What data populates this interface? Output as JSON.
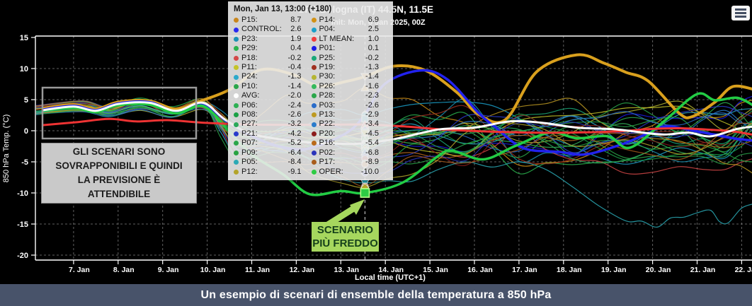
{
  "header": {
    "title": "GFS Bologna (IT) 44.5N, 11.5E",
    "subtitle": "Init: Mon, 6 Jan 2025, 00Z"
  },
  "tooltip": {
    "timestamp": "Mon, Jan 13, 13:00 (+180)"
  },
  "annotations": {
    "overlap_note": {
      "lines": [
        "GLI SCENARI SONO",
        "SOVRAPPONIBILI E QUINDI",
        "LA PREVISIONE È",
        "ATTENDIBILE"
      ]
    },
    "coldest": {
      "lines": [
        "SCENARIO",
        "PIÙ FREDDO"
      ]
    }
  },
  "caption": "Un esempio di scenari di ensemble della temperatura a 850 hPa",
  "axes": {
    "y_label": "850 hPa Temp. (°C)",
    "x_label": "Local time (UTC+1)",
    "y_ticks": [
      15,
      10,
      5,
      0,
      -5,
      -10,
      -15,
      -20
    ],
    "x_ticks": [
      "7. Jan",
      "8. Jan",
      "9. Jan",
      "10. Jan",
      "11. Jan",
      "12. Jan",
      "13. Jan",
      "14. Jan",
      "15. Jan",
      "16. Jan",
      "17. Jan",
      "18. Jan",
      "19. Jan",
      "20. Jan",
      "21. Jan",
      "22. Jan"
    ]
  },
  "chart_data": {
    "type": "line",
    "title": "GFS Bologna (IT) 44.5N, 11.5E",
    "init": "Mon, 6 Jan 2025, 00Z",
    "xlabel": "Local time (UTC+1)",
    "ylabel": "850 hPa Temp. (°C)",
    "ylim": [
      -20,
      15
    ],
    "x_range_days": [
      6.16,
      22.3
    ],
    "grid": true,
    "hover_time": "Mon, Jan 13, 13:00 (+180)",
    "hover_day": 13.542,
    "members": [
      {
        "name": "P15",
        "color": "#c9861c",
        "value": 8.7,
        "marker": "tri-down"
      },
      {
        "name": "P14",
        "color": "#d29114",
        "value": 6.9,
        "marker": "tri-up"
      },
      {
        "name": "CONTROL",
        "color": "#2a2af0",
        "value": 2.6,
        "marker": "circle"
      },
      {
        "name": "P04",
        "color": "#1a9fc9",
        "value": 2.5,
        "marker": "circle"
      },
      {
        "name": "P23",
        "color": "#1a93b5",
        "value": 1.9,
        "marker": "square"
      },
      {
        "name": "LT MEAN",
        "color": "#f23c3c",
        "value": 1.0,
        "marker": "tri-up"
      },
      {
        "name": "P29",
        "color": "#2ab34d",
        "value": 0.4,
        "marker": "tri-up"
      },
      {
        "name": "P01",
        "color": "#1a1ae8",
        "value": 0.1,
        "marker": "circle"
      },
      {
        "name": "P18",
        "color": "#d44747",
        "value": -0.2,
        "marker": "tri-down"
      },
      {
        "name": "P25",
        "color": "#1aa878",
        "value": -0.2,
        "marker": "square"
      },
      {
        "name": "P11",
        "color": "#c4c428",
        "value": -0.4,
        "marker": "tri-down"
      },
      {
        "name": "P19",
        "color": "#a03020",
        "value": -1.3,
        "marker": "diamond"
      },
      {
        "name": "P24",
        "color": "#2aa9cb",
        "value": -1.3,
        "marker": "circle"
      },
      {
        "name": "P30",
        "color": "#b5b532",
        "value": -1.4,
        "marker": "tri-down"
      },
      {
        "name": "P10",
        "color": "#2aa64a",
        "value": -1.4,
        "marker": "square"
      },
      {
        "name": "P26",
        "color": "#36b95c",
        "value": -1.6,
        "marker": "tri-up"
      },
      {
        "name": "AVG",
        "color": "#ffffff",
        "value": -2.0,
        "marker": "circle"
      },
      {
        "name": "P28",
        "color": "#2aa64a",
        "value": -2.3,
        "marker": "diamond"
      },
      {
        "name": "P06",
        "color": "#2db053",
        "value": -2.4,
        "marker": "circle"
      },
      {
        "name": "P03",
        "color": "#2a6cc9",
        "value": -2.6,
        "marker": "square"
      },
      {
        "name": "P08",
        "color": "#1aa045",
        "value": -2.6,
        "marker": "diamond"
      },
      {
        "name": "P13",
        "color": "#bd9a22",
        "value": -2.9,
        "marker": "diamond"
      },
      {
        "name": "P27",
        "color": "#2aa85a",
        "value": -3.2,
        "marker": "circle"
      },
      {
        "name": "P22",
        "color": "#2a7ccb",
        "value": -3.4,
        "marker": "tri-up"
      },
      {
        "name": "P21",
        "color": "#2a3ccb",
        "value": -4.2,
        "marker": "circle"
      },
      {
        "name": "P20",
        "color": "#8c1c1c",
        "value": -4.5,
        "marker": "circle"
      },
      {
        "name": "P07",
        "color": "#2aa64a",
        "value": -5.2,
        "marker": "circle"
      },
      {
        "name": "P16",
        "color": "#b96a1c",
        "value": -5.4,
        "marker": "circle"
      },
      {
        "name": "P09",
        "color": "#28a342",
        "value": -6.4,
        "marker": "tri-up"
      },
      {
        "name": "P02",
        "color": "#2a34bb",
        "value": -6.8,
        "marker": "circle"
      },
      {
        "name": "P05",
        "color": "#2aa9b5",
        "value": -8.4,
        "marker": "tri-down",
        "late_path": [
          [
            17,
            -5
          ],
          [
            18.2,
            -9
          ],
          [
            19.4,
            -14.5
          ],
          [
            20.1,
            -15.8
          ],
          [
            20.7,
            -13.9
          ],
          [
            21.3,
            -12.8
          ],
          [
            21.7,
            -14.8
          ],
          [
            22.3,
            -11.7
          ]
        ]
      },
      {
        "name": "P17",
        "color": "#a85c1c",
        "value": -8.9,
        "marker": "circle"
      },
      {
        "name": "P12",
        "color": "#b3a42a",
        "value": -9.1,
        "marker": "diamond"
      },
      {
        "name": "OPER",
        "color": "#2ecc44",
        "value": -10.0,
        "marker": "square"
      }
    ],
    "main_series": [
      {
        "name": "P15",
        "color": "#d9a01d",
        "width": 4,
        "points": [
          [
            6.3,
            3.6
          ],
          [
            7,
            4.2
          ],
          [
            7.5,
            3.5
          ],
          [
            8,
            4.6
          ],
          [
            8.7,
            4.8
          ],
          [
            9.3,
            3.5
          ],
          [
            9.9,
            4.9
          ],
          [
            10.5,
            6.6
          ],
          [
            11.2,
            9.8
          ],
          [
            11.9,
            9.1
          ],
          [
            12.5,
            7.2
          ],
          [
            13.1,
            7.9
          ],
          [
            13.542,
            8.7
          ],
          [
            14.2,
            10.4
          ],
          [
            14.9,
            9.7
          ],
          [
            15.6,
            6.2
          ],
          [
            16.1,
            2.6
          ],
          [
            16.7,
            1.8
          ],
          [
            17.4,
            9.5
          ],
          [
            18.3,
            12.2
          ],
          [
            18.9,
            10.9
          ],
          [
            19.4,
            9.4
          ],
          [
            19.9,
            8
          ],
          [
            20.6,
            2.8
          ],
          [
            20.9,
            2.3
          ],
          [
            21.4,
            4.6
          ],
          [
            21.8,
            7.1
          ],
          [
            22.3,
            6.6
          ]
        ]
      },
      {
        "name": "CONTROL",
        "color": "#2222ee",
        "width": 3.5,
        "points": [
          [
            6.3,
            3.4
          ],
          [
            7,
            4
          ],
          [
            7.5,
            3.3
          ],
          [
            8,
            4.4
          ],
          [
            8.7,
            4.6
          ],
          [
            9.3,
            3.1
          ],
          [
            9.9,
            4.3
          ],
          [
            10.5,
            1.2
          ],
          [
            11.3,
            -1.8
          ],
          [
            12.1,
            -3
          ],
          [
            12.7,
            -1.8
          ],
          [
            13.2,
            0
          ],
          [
            13.542,
            2.6
          ],
          [
            14,
            7.6
          ],
          [
            14.8,
            9.7
          ],
          [
            15.4,
            8.2
          ],
          [
            16.1,
            2.8
          ],
          [
            16.5,
            0.4
          ],
          [
            17.1,
            -2.8
          ],
          [
            17.9,
            -3.4
          ],
          [
            18.5,
            -3.8
          ],
          [
            19.3,
            -2.2
          ],
          [
            19.9,
            -0.4
          ],
          [
            20.3,
            0.7
          ],
          [
            21,
            -0.1
          ],
          [
            21.8,
            -1.2
          ],
          [
            22.3,
            -1.6
          ]
        ]
      },
      {
        "name": "OPER",
        "color": "#22cc44",
        "width": 3.5,
        "points": [
          [
            6.3,
            3.2
          ],
          [
            7,
            3.7
          ],
          [
            7.5,
            3
          ],
          [
            8,
            4.1
          ],
          [
            8.7,
            4.2
          ],
          [
            9.3,
            2.8
          ],
          [
            9.9,
            4
          ],
          [
            10.4,
            0.6
          ],
          [
            11,
            -3.8
          ],
          [
            11.7,
            -7
          ],
          [
            12.3,
            -10.2
          ],
          [
            13,
            -9.7
          ],
          [
            13.542,
            -10
          ],
          [
            14.4,
            -8.3
          ],
          [
            15.2,
            -4
          ],
          [
            15.5,
            -3.2
          ],
          [
            16.2,
            -4.6
          ],
          [
            16.9,
            -2.5
          ],
          [
            17.7,
            -0.3
          ],
          [
            18.3,
            -1.2
          ],
          [
            19,
            -0.9
          ],
          [
            19.5,
            -2.7
          ],
          [
            20.3,
            1.8
          ],
          [
            21,
            5.9
          ],
          [
            21.4,
            4.9
          ],
          [
            21.9,
            5.3
          ],
          [
            22.3,
            3.9
          ]
        ]
      },
      {
        "name": "LT MEAN",
        "color": "#ee3333",
        "width": 3,
        "points": [
          [
            6.3,
            0.9
          ],
          [
            7.1,
            1.4
          ],
          [
            7.8,
            1.9
          ],
          [
            8.4,
            1.5
          ],
          [
            9.1,
            1.7
          ],
          [
            9.9,
            1.3
          ],
          [
            11,
            1
          ],
          [
            12.4,
            0.95
          ],
          [
            13.542,
            1
          ],
          [
            14.4,
            0.7
          ],
          [
            15.3,
            0.2
          ],
          [
            16.2,
            -0.1
          ],
          [
            17.2,
            -0.3
          ],
          [
            18.2,
            -0.3
          ],
          [
            19.2,
            -0.1
          ],
          [
            20,
            0.3
          ],
          [
            20.6,
            0.4
          ],
          [
            21.2,
            0.2
          ],
          [
            21.8,
            -0.1
          ],
          [
            22.3,
            -0.7
          ]
        ]
      },
      {
        "name": "AVG",
        "color": "#ffffff",
        "width": 3,
        "points": [
          [
            6.3,
            3.3
          ],
          [
            7,
            3.9
          ],
          [
            7.5,
            3.2
          ],
          [
            8,
            4.3
          ],
          [
            8.7,
            4.5
          ],
          [
            9.3,
            3.2
          ],
          [
            9.9,
            4.5
          ],
          [
            10.4,
            1.8
          ],
          [
            11,
            -0.5
          ],
          [
            12,
            -1.7
          ],
          [
            13,
            -2.1
          ],
          [
            13.542,
            -2
          ],
          [
            14.3,
            -1.2
          ],
          [
            15.2,
            0.2
          ],
          [
            16,
            0.5
          ],
          [
            16.8,
            1.5
          ],
          [
            17.5,
            1.3
          ],
          [
            18.3,
            0.5
          ],
          [
            19.2,
            0.2
          ],
          [
            20.2,
            -0.6
          ],
          [
            20.8,
            -0.3
          ],
          [
            21.3,
            -0.9
          ],
          [
            21.9,
            0.3
          ],
          [
            22.3,
            0.7
          ]
        ]
      }
    ]
  }
}
